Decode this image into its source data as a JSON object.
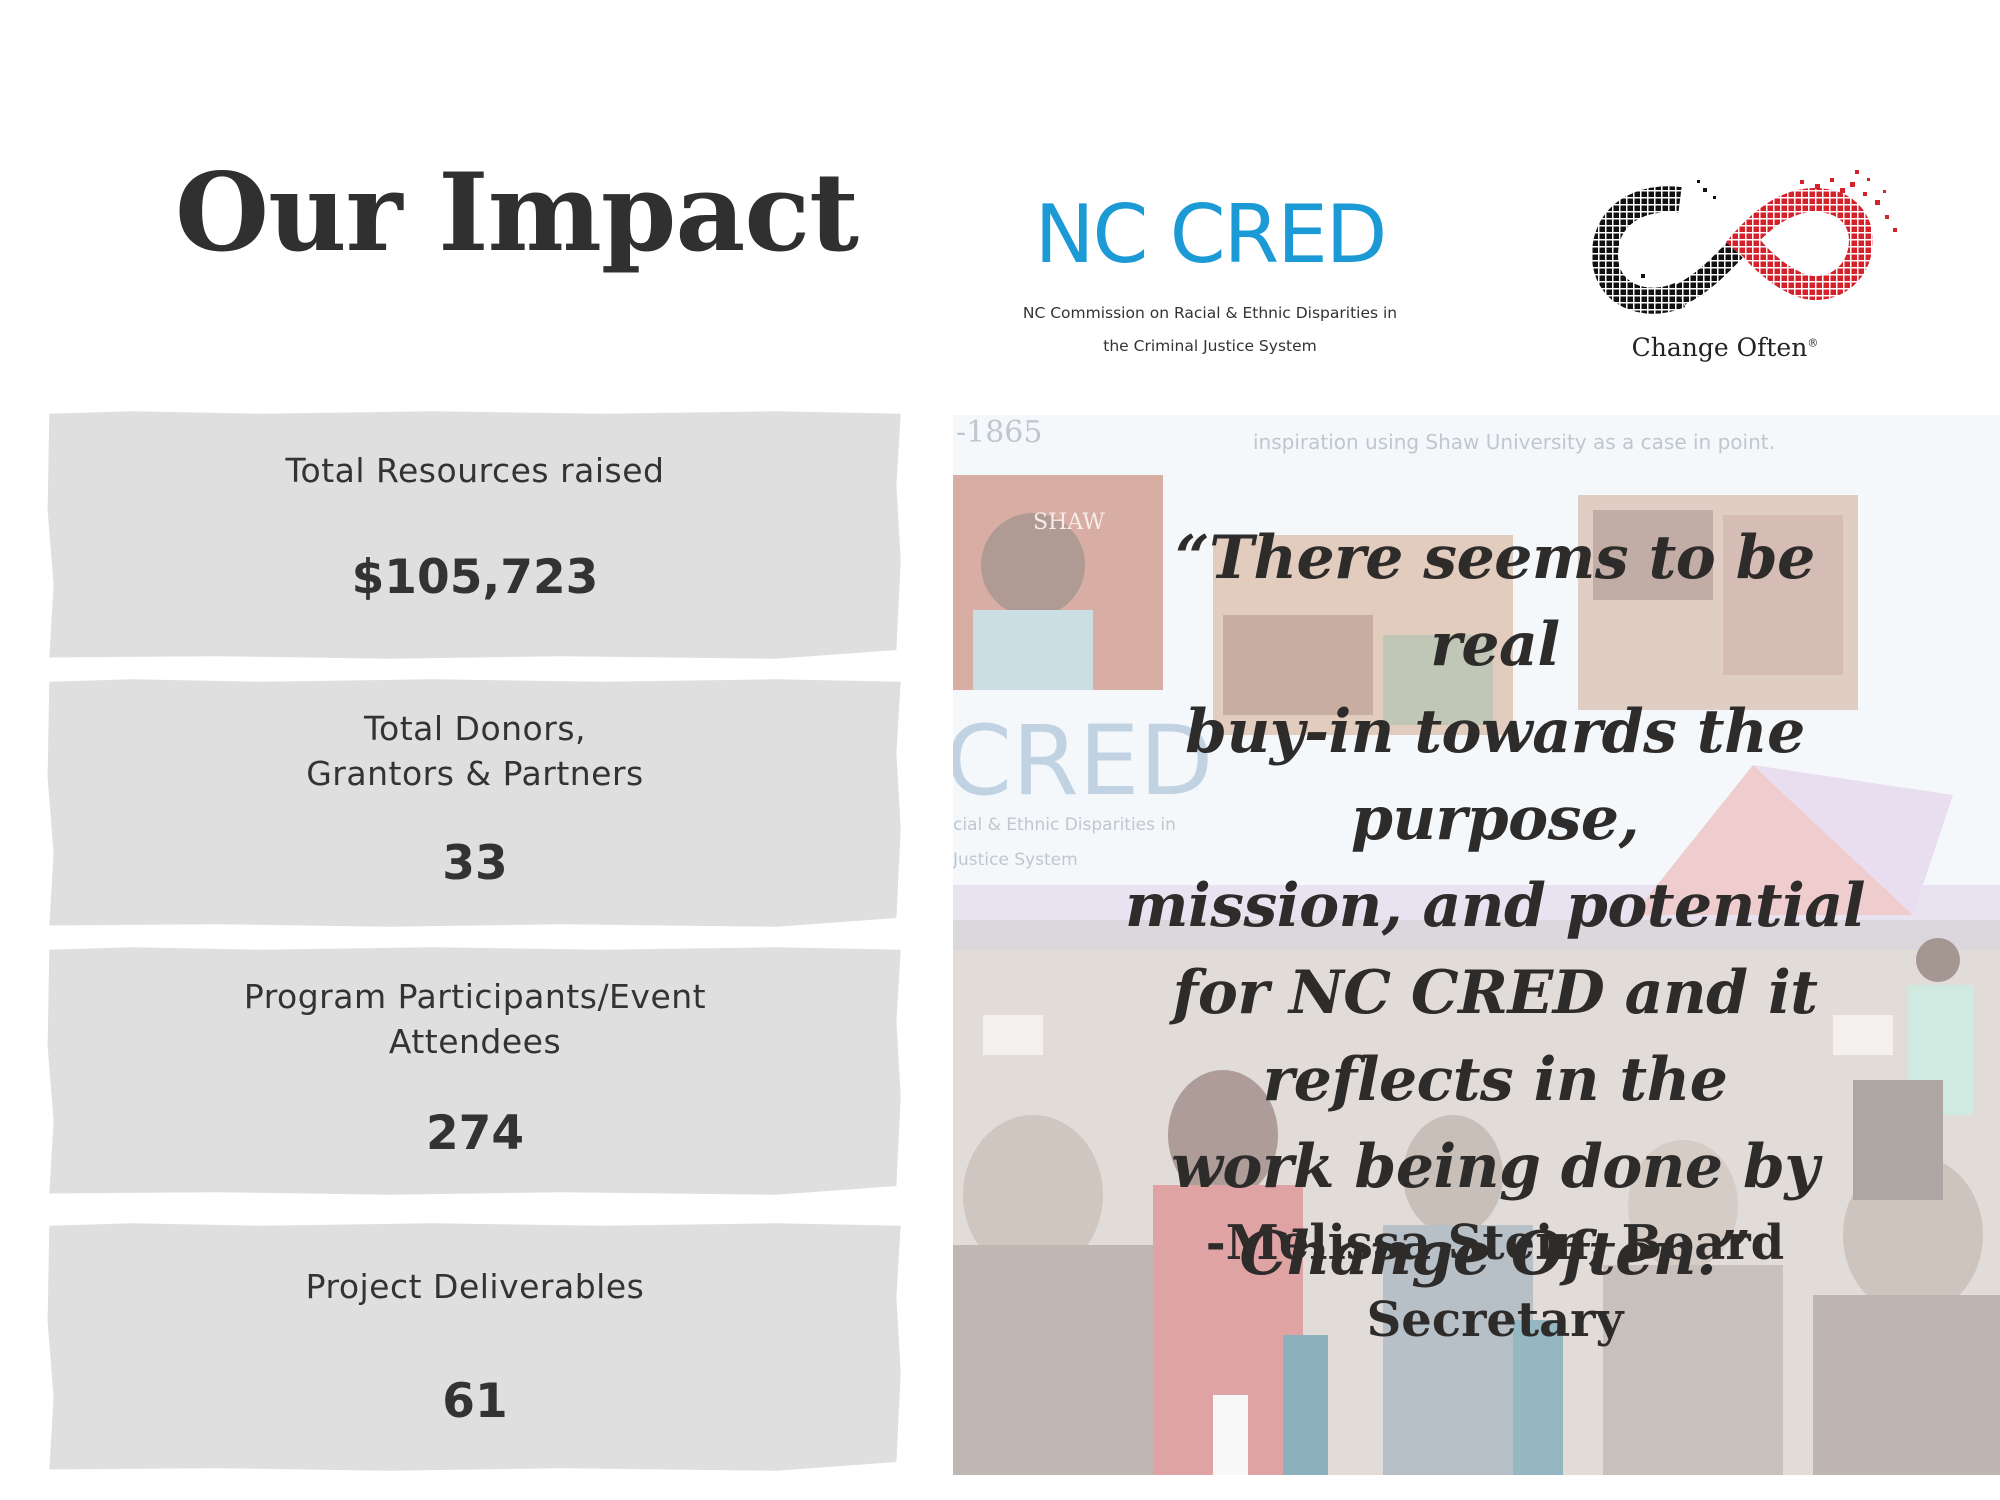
{
  "page": {
    "title": "Our Impact"
  },
  "logos": {
    "nccred": {
      "name": "NC CRED",
      "subtitle_line1": "NC Commission on Racial & Ethnic Disparities in",
      "subtitle_line2": "the Criminal Justice System",
      "color": "#1b9ad6"
    },
    "change_often": {
      "name": "Change Often",
      "mark": "®",
      "colors": [
        "#111111",
        "#d6202a"
      ]
    }
  },
  "stats": [
    {
      "label_line1": "Total Resources raised",
      "label_line2": "",
      "value": "$105,723"
    },
    {
      "label_line1": "Total Donors,",
      "label_line2": "Grantors & Partners",
      "value": "33"
    },
    {
      "label_line1": "Program Participants/Event",
      "label_line2": "Attendees",
      "value": "274"
    },
    {
      "label_line1": "Project Deliverables",
      "label_line2": "",
      "value": "61"
    }
  ],
  "photo": {
    "slide_year": "-1865",
    "slide_caption": "inspiration using Shaw University as a case in point.",
    "slide_logo_fragment": "CRED",
    "slide_sub_line1": "cial & Ethnic Disparities in",
    "slide_sub_line2": "Justice System",
    "shaw_label": "SHAW"
  },
  "quote": {
    "lines": [
      "“There seems to be real",
      "buy-in towards the",
      "purpose,",
      "mission, and potential",
      "for NC CRED and it",
      "reflects in the",
      "work being done by",
      "Change Often.”"
    ],
    "attribution_line1": "-Melissa Stein, Board",
    "attribution_line2": "Secretary"
  },
  "colors": {
    "card_bg": "#e0dfdf",
    "text_dark": "#303030"
  }
}
